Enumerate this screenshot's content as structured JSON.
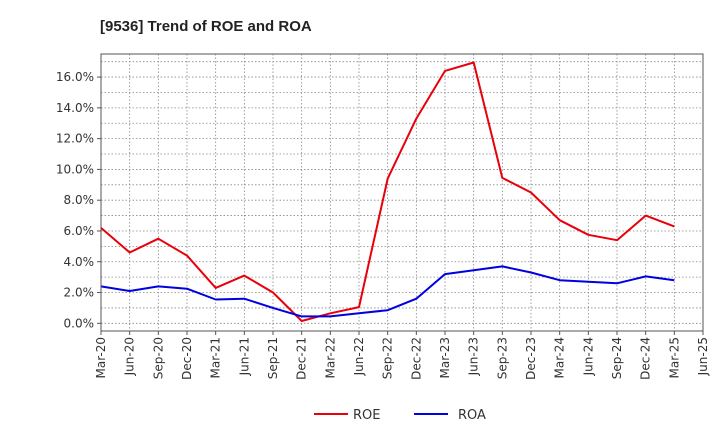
{
  "chart_data": {
    "type": "line",
    "title": "[9536]  Trend of ROE and ROA",
    "xlabel": "",
    "ylabel": "",
    "x": [
      "Mar-20",
      "Jun-20",
      "Sep-20",
      "Dec-20",
      "Mar-21",
      "Jun-21",
      "Sep-21",
      "Dec-21",
      "Mar-22",
      "Jun-22",
      "Sep-22",
      "Dec-22",
      "Mar-23",
      "Jun-23",
      "Sep-23",
      "Dec-23",
      "Mar-24",
      "Jun-24",
      "Sep-24",
      "Dec-24",
      "Mar-25",
      "Jun-25"
    ],
    "ylim": [
      -0.5,
      17.5
    ],
    "yticks": [
      0,
      2,
      4,
      6,
      8,
      10,
      12,
      14,
      16
    ],
    "ytick_labels": [
      "0.0%",
      "2.0%",
      "4.0%",
      "6.0%",
      "8.0%",
      "10.0%",
      "12.0%",
      "14.0%",
      "16.0%"
    ],
    "grid": true,
    "legend_position": "bottom-center",
    "series": [
      {
        "name": "ROE",
        "color": "#e8000b",
        "values": [
          6.2,
          4.6,
          5.5,
          4.4,
          2.3,
          3.1,
          2.0,
          0.15,
          0.65,
          1.05,
          9.4,
          13.3,
          16.4,
          16.95,
          9.45,
          8.5,
          6.7,
          5.75,
          5.4,
          7.0,
          6.3,
          null
        ]
      },
      {
        "name": "ROA",
        "color": "#0000e0",
        "values": [
          2.4,
          2.1,
          2.4,
          2.25,
          1.55,
          1.6,
          1.0,
          0.45,
          0.45,
          0.65,
          0.85,
          1.6,
          3.2,
          3.45,
          3.7,
          3.3,
          2.8,
          2.7,
          2.6,
          3.05,
          2.8,
          null
        ]
      }
    ]
  }
}
